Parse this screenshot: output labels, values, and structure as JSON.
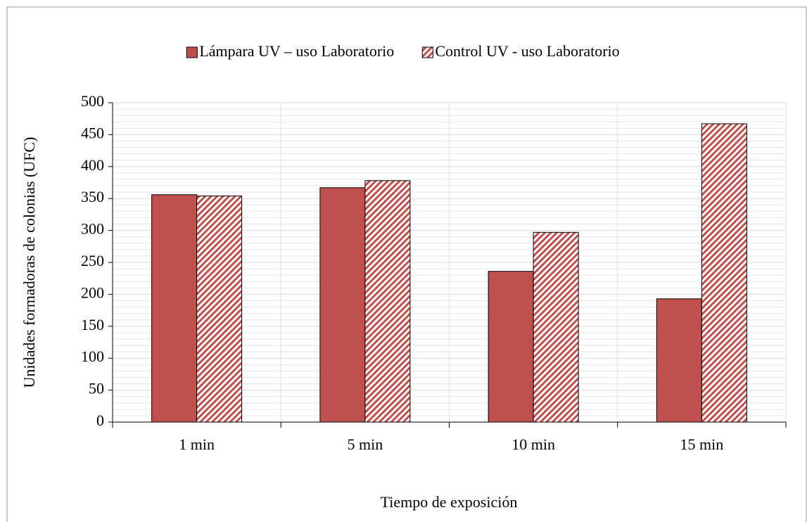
{
  "chart_data": {
    "type": "bar",
    "x_label": "Tiempo de exposición",
    "y_label": "Unidades formadoras de colonias (UFC)",
    "categories": [
      "1 min",
      "5 min",
      "10 min",
      "15 min"
    ],
    "series": [
      {
        "name": "Lámpara UV – uso Laboratorio",
        "color": "#c0504d",
        "pattern": "solid",
        "values": [
          356,
          367,
          236,
          193
        ]
      },
      {
        "name": "Control UV - uso Laboratorio",
        "color": "#c0504d",
        "pattern": "diagonal",
        "values": [
          354,
          378,
          297,
          467
        ]
      }
    ],
    "ylim": [
      0,
      500
    ],
    "yticks": [
      0,
      50,
      100,
      150,
      200,
      250,
      300,
      350,
      400,
      450,
      500
    ],
    "grid": true,
    "legend": "top"
  }
}
